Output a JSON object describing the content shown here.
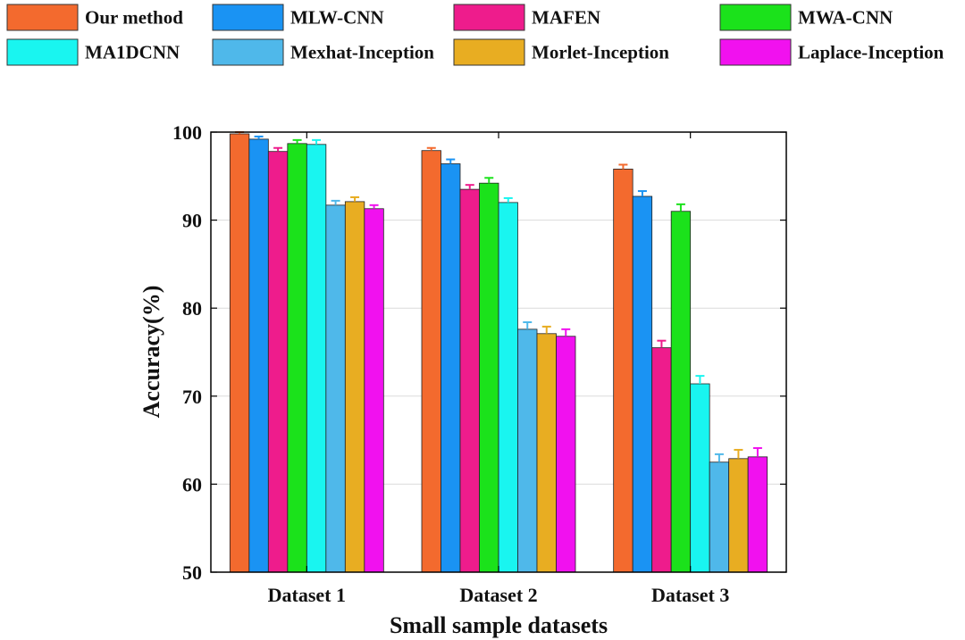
{
  "chart_data": {
    "type": "bar",
    "xlabel": "Small sample datasets",
    "ylabel": "Accuracy(%)",
    "ylim": [
      50,
      100
    ],
    "yticks": [
      50,
      60,
      70,
      80,
      90,
      100
    ],
    "grid": "horizontal",
    "legend_position": "top",
    "categories": [
      "Dataset 1",
      "Dataset 2",
      "Dataset 3"
    ],
    "series": [
      {
        "name": "Our method",
        "color": "#F36A2E",
        "values": [
          99.8,
          97.9,
          95.8
        ],
        "errors": [
          0.2,
          0.3,
          0.5
        ]
      },
      {
        "name": "MLW-CNN",
        "color": "#1A93F3",
        "values": [
          99.2,
          96.4,
          92.7
        ],
        "errors": [
          0.3,
          0.5,
          0.6
        ]
      },
      {
        "name": "MAFEN",
        "color": "#EE1C8C",
        "values": [
          97.8,
          93.5,
          75.5
        ],
        "errors": [
          0.4,
          0.5,
          0.8
        ]
      },
      {
        "name": "MWA-CNN",
        "color": "#1BE21B",
        "values": [
          98.7,
          94.2,
          91.0
        ],
        "errors": [
          0.4,
          0.6,
          0.8
        ]
      },
      {
        "name": "MA1DCNN",
        "color": "#19F5F0",
        "values": [
          98.6,
          92.0,
          71.4
        ],
        "errors": [
          0.5,
          0.5,
          0.9
        ]
      },
      {
        "name": "Mexhat-Inception",
        "color": "#4FB8EA",
        "values": [
          91.7,
          77.6,
          62.5
        ],
        "errors": [
          0.5,
          0.8,
          0.9
        ]
      },
      {
        "name": "Morlet-Inception",
        "color": "#E8AD22",
        "values": [
          92.1,
          77.1,
          62.9
        ],
        "errors": [
          0.5,
          0.8,
          1.0
        ]
      },
      {
        "name": "Laplace-Inception",
        "color": "#F111EF",
        "values": [
          91.3,
          76.8,
          63.1
        ],
        "errors": [
          0.4,
          0.8,
          1.0
        ]
      }
    ]
  }
}
